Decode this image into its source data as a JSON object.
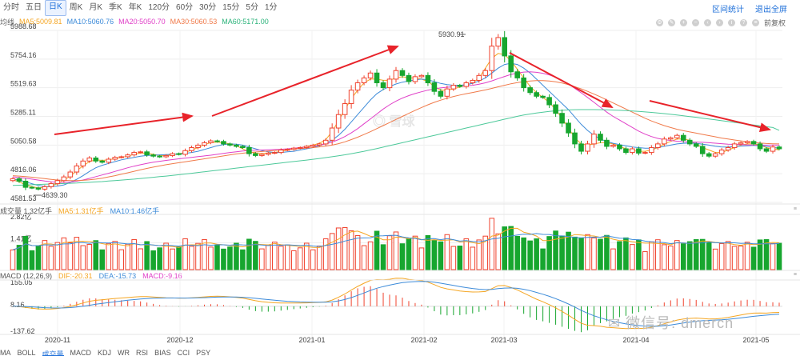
{
  "tabs": [
    {
      "label": "分时"
    },
    {
      "label": "五日"
    },
    {
      "label": "日K",
      "active": true
    },
    {
      "label": "周K"
    },
    {
      "label": "月K"
    },
    {
      "label": "季K"
    },
    {
      "label": "年K"
    },
    {
      "label": "120分"
    },
    {
      "label": "60分"
    },
    {
      "label": "30分"
    },
    {
      "label": "15分"
    },
    {
      "label": "5分"
    },
    {
      "label": "1分"
    }
  ],
  "topright": {
    "interval_stats": "区间统计",
    "exit_fullscreen": "退出全屏"
  },
  "top_icons": {
    "adjust": "前复权"
  },
  "ma_legend": {
    "name": "均线",
    "ma5": "MA5:5009.81",
    "ma10": "MA10:5060.76",
    "ma20": "MA20:5050.70",
    "ma30": "MA30:5060.53",
    "ma60": "MA60:5171.00"
  },
  "vol_legend": {
    "title": "成交量 1.32亿手",
    "ma5": "MA5:1.31亿手",
    "ma10": "MA10:1.46亿手"
  },
  "macd_legend": {
    "title": "MACD (12,26,9)",
    "dif": "DIF:-20.31",
    "dea": "DEA:-15.73",
    "macd": "MACD:-9.16"
  },
  "price_axis": [
    "5988.68",
    "5754.16",
    "5519.63",
    "5285.11",
    "5050.58",
    "4816.06",
    "4581.53"
  ],
  "vol_axis": [
    "2.82亿",
    "1.41亿"
  ],
  "macd_axis": [
    "155.05",
    "8.16",
    "-137.62"
  ],
  "annotations": {
    "high": "5930.91",
    "low": "4639.30"
  },
  "x_labels": [
    "2020-11",
    "2020-12",
    "2021-01",
    "2021-02",
    "2021-03",
    "2021-04",
    "2021-05"
  ],
  "bottom_tabs": [
    {
      "label": "MA"
    },
    {
      "label": "BOLL"
    },
    {
      "label": "成交量",
      "active": true
    },
    {
      "label": "MACD"
    },
    {
      "label": "KDJ"
    },
    {
      "label": "WR"
    },
    {
      "label": "RSI"
    },
    {
      "label": "BIAS"
    },
    {
      "label": "CCI"
    },
    {
      "label": "PSY"
    }
  ],
  "watermark": "微信号: dmercn",
  "logo_text": "雪球",
  "colors": {
    "up": "#f0432e",
    "down": "#17a62f",
    "ma5": "#f5a623",
    "ma10": "#3d8bd9",
    "ma20": "#e040c8",
    "ma30": "#f07a4a",
    "ma60": "#4dc99a",
    "arrow": "#e8232a"
  },
  "chart_data": {
    "type": "candlestick",
    "x_ticks": [
      "2020-11",
      "2020-12",
      "2021-01",
      "2021-02",
      "2021-03",
      "2021-04",
      "2021-05"
    ],
    "price_range": [
      4581.53,
      5988.68
    ],
    "price": {
      "open": [
        4760,
        4775,
        4755,
        4705,
        4700,
        4690,
        4710,
        4735,
        4760,
        4790,
        4830,
        4880,
        4920,
        4945,
        4920,
        4910,
        4935,
        4950,
        4955,
        4970,
        4990,
        4995,
        4970,
        4960,
        4955,
        4965,
        4980,
        4975,
        5005,
        5030,
        5050,
        5070,
        5085,
        5080,
        5060,
        5050,
        5040,
        5030,
        4980,
        4965,
        4975,
        4985,
        4990,
        5010,
        5015,
        5025,
        5030,
        5040,
        5050,
        5060,
        5090,
        5190,
        5300,
        5390,
        5500,
        5560,
        5600,
        5640,
        5560,
        5520,
        5590,
        5660,
        5620,
        5570,
        5610,
        5620,
        5560,
        5490,
        5450,
        5510,
        5540,
        5530,
        5560,
        5580,
        5620,
        5660,
        5860,
        5930,
        5780,
        5650,
        5600,
        5520,
        5480,
        5450,
        5440,
        5380,
        5310,
        5230,
        5150,
        5060,
        5000,
        5060,
        5140,
        5090,
        5040,
        5050,
        5020,
        4990,
        5020,
        4985,
        4990,
        5030,
        5060,
        5100,
        5110,
        5130,
        5090,
        5060,
        5040,
        4980,
        4960,
        4980,
        5010,
        5030,
        5060,
        5070,
        5080,
        5060,
        5020,
        5000,
        5035
      ],
      "close": [
        4775,
        4755,
        4705,
        4700,
        4690,
        4710,
        4735,
        4760,
        4790,
        4830,
        4880,
        4920,
        4945,
        4920,
        4910,
        4935,
        4950,
        4955,
        4970,
        4990,
        4995,
        4970,
        4960,
        4955,
        4965,
        4980,
        4975,
        5005,
        5030,
        5050,
        5070,
        5085,
        5080,
        5060,
        5050,
        5040,
        5030,
        4980,
        4965,
        4975,
        4985,
        4990,
        5010,
        5015,
        5025,
        5030,
        5040,
        5050,
        5060,
        5090,
        5190,
        5300,
        5390,
        5500,
        5560,
        5600,
        5640,
        5560,
        5520,
        5590,
        5660,
        5620,
        5570,
        5610,
        5620,
        5560,
        5490,
        5450,
        5510,
        5540,
        5530,
        5560,
        5580,
        5620,
        5660,
        5860,
        5930,
        5780,
        5650,
        5600,
        5520,
        5480,
        5450,
        5440,
        5380,
        5310,
        5230,
        5150,
        5060,
        5000,
        5060,
        5140,
        5090,
        5040,
        5050,
        5020,
        4990,
        5020,
        4985,
        4990,
        5030,
        5060,
        5100,
        5110,
        5130,
        5090,
        5060,
        5040,
        4980,
        4960,
        4980,
        5010,
        5030,
        5060,
        5070,
        5080,
        5060,
        5020,
        5000,
        5035,
        5020
      ]
    },
    "ma_lines": [
      {
        "name": "MA5",
        "values": [
          4765,
          4750,
          4725,
          4710,
          4700,
          4705,
          4715,
          4735,
          4765,
          4795,
          4840,
          4880,
          4915,
          4930,
          4925,
          4930,
          4940,
          4950,
          4960,
          4975,
          4985,
          4985,
          4975,
          4965,
          4965,
          4970,
          4980,
          4990,
          5010,
          5030,
          5055,
          5070,
          5075,
          5070,
          5060,
          5045,
          5020,
          4995,
          4985,
          4980,
          4985,
          4990,
          5000,
          5010,
          5020,
          5030,
          5040,
          5050,
          5065,
          5095,
          5160,
          5250,
          5340,
          5430,
          5500,
          5560,
          5590,
          5590,
          5580,
          5580,
          5600,
          5610,
          5600,
          5600,
          5590,
          5570,
          5530,
          5500,
          5500,
          5510,
          5525,
          5540,
          5560,
          5600,
          5680,
          5760,
          5800,
          5790,
          5740,
          5670,
          5600,
          5530,
          5480,
          5440,
          5400,
          5340,
          5270,
          5190,
          5110,
          5060,
          5050,
          5060,
          5070,
          5070,
          5060,
          5040,
          5020,
          5005,
          5000,
          5000,
          5010,
          5030,
          5060,
          5080,
          5100,
          5100,
          5090,
          5060,
          5030,
          5010,
          4990,
          4990,
          5010,
          5030,
          5050,
          5060,
          5060,
          5050,
          5030,
          5020,
          5010
        ]
      },
      {
        "name": "MA10",
        "values": [
          4770,
          4765,
          4750,
          4735,
          4720,
          4712,
          4710,
          4715,
          4725,
          4745,
          4770,
          4800,
          4835,
          4865,
          4885,
          4900,
          4915,
          4930,
          4940,
          4950,
          4960,
          4965,
          4968,
          4970,
          4972,
          4975,
          4978,
          4982,
          4990,
          5000,
          5015,
          5030,
          5045,
          5055,
          5060,
          5058,
          5050,
          5035,
          5020,
          5005,
          4995,
          4990,
          4990,
          4995,
          5000,
          5010,
          5020,
          5030,
          5045,
          5065,
          5090,
          5130,
          5180,
          5240,
          5300,
          5360,
          5420,
          5470,
          5505,
          5530,
          5550,
          5565,
          5575,
          5585,
          5590,
          5585,
          5570,
          5555,
          5545,
          5540,
          5540,
          5545,
          5555,
          5575,
          5600,
          5640,
          5680,
          5710,
          5720,
          5710,
          5680,
          5640,
          5590,
          5540,
          5490,
          5440,
          5390,
          5340,
          5280,
          5220,
          5170,
          5130,
          5100,
          5080,
          5065,
          5055,
          5045,
          5035,
          5030,
          5025,
          5025,
          5030,
          5040,
          5050,
          5060,
          5065,
          5068,
          5065,
          5058,
          5050,
          5040,
          5035,
          5035,
          5038,
          5042,
          5045,
          5048,
          5046,
          5040,
          5032,
          5025
        ]
      },
      {
        "name": "MA20",
        "values": [
          4790,
          4786,
          4780,
          4772,
          4764,
          4756,
          4750,
          4746,
          4745,
          4748,
          4755,
          4765,
          4778,
          4792,
          4806,
          4820,
          4835,
          4850,
          4865,
          4878,
          4890,
          4900,
          4910,
          4918,
          4925,
          4932,
          4938,
          4944,
          4950,
          4956,
          4962,
          4968,
          4975,
          4982,
          4990,
          4996,
          5002,
          5006,
          5008,
          5010,
          5012,
          5014,
          5016,
          5020,
          5025,
          5030,
          5036,
          5042,
          5050,
          5060,
          5075,
          5095,
          5120,
          5150,
          5185,
          5225,
          5265,
          5305,
          5345,
          5380,
          5410,
          5435,
          5455,
          5472,
          5487,
          5500,
          5510,
          5518,
          5524,
          5528,
          5532,
          5536,
          5540,
          5548,
          5560,
          5576,
          5594,
          5612,
          5628,
          5640,
          5648,
          5650,
          5646,
          5638,
          5625,
          5605,
          5580,
          5550,
          5515,
          5478,
          5440,
          5400,
          5360,
          5320,
          5285,
          5255,
          5225,
          5195,
          5165,
          5140,
          5120,
          5105,
          5095,
          5088,
          5082,
          5078,
          5076,
          5075,
          5073,
          5070,
          5066,
          5062,
          5058,
          5056,
          5054,
          5052,
          5050,
          5050,
          5050,
          5050,
          5050
        ]
      },
      {
        "name": "MA30",
        "values": [
          4800,
          4797,
          4793,
          4788,
          4782,
          4776,
          4770,
          4765,
          4762,
          4760,
          4760,
          4762,
          4766,
          4772,
          4780,
          4790,
          4800,
          4812,
          4824,
          4836,
          4848,
          4860,
          4870,
          4880,
          4890,
          4898,
          4906,
          4914,
          4922,
          4930,
          4938,
          4946,
          4954,
          4962,
          4970,
          4978,
          4984,
          4990,
          4994,
          4998,
          5002,
          5006,
          5010,
          5014,
          5018,
          5022,
          5026,
          5030,
          5036,
          5042,
          5050,
          5062,
          5077,
          5095,
          5115,
          5137,
          5160,
          5185,
          5210,
          5235,
          5260,
          5285,
          5310,
          5335,
          5358,
          5380,
          5400,
          5418,
          5434,
          5448,
          5460,
          5471,
          5481,
          5491,
          5502,
          5514,
          5527,
          5540,
          5552,
          5562,
          5570,
          5575,
          5578,
          5578,
          5575,
          5568,
          5558,
          5545,
          5528,
          5510,
          5490,
          5468,
          5445,
          5420,
          5395,
          5370,
          5345,
          5320,
          5295,
          5270,
          5248,
          5228,
          5210,
          5194,
          5180,
          5168,
          5158,
          5148,
          5138,
          5128,
          5118,
          5108,
          5100,
          5092,
          5085,
          5078,
          5072,
          5067,
          5063,
          5061,
          5060
        ]
      },
      {
        "name": "MA60",
        "values": [
          4720,
          4722,
          4724,
          4726,
          4728,
          4730,
          4732,
          4734,
          4736,
          4738,
          4740,
          4743,
          4746,
          4749,
          4752,
          4756,
          4760,
          4764,
          4768,
          4772,
          4777,
          4782,
          4787,
          4792,
          4797,
          4802,
          4808,
          4814,
          4820,
          4826,
          4832,
          4838,
          4844,
          4850,
          4856,
          4862,
          4868,
          4874,
          4880,
          4886,
          4892,
          4898,
          4904,
          4910,
          4916,
          4922,
          4928,
          4934,
          4941,
          4948,
          4955,
          4963,
          4971,
          4980,
          4990,
          5000,
          5011,
          5022,
          5034,
          5046,
          5058,
          5070,
          5082,
          5094,
          5106,
          5118,
          5130,
          5142,
          5154,
          5166,
          5178,
          5190,
          5202,
          5214,
          5226,
          5238,
          5250,
          5262,
          5274,
          5286,
          5296,
          5305,
          5313,
          5320,
          5326,
          5331,
          5335,
          5338,
          5340,
          5341,
          5341,
          5341,
          5340,
          5339,
          5337,
          5335,
          5332,
          5329,
          5326,
          5322,
          5318,
          5313,
          5308,
          5302,
          5296,
          5290,
          5284,
          5278,
          5271,
          5264,
          5257,
          5250,
          5243,
          5236,
          5229,
          5222,
          5215,
          5208,
          5201,
          5194,
          5171
        ]
      }
    ],
    "volume_range": [
      0,
      2.82
    ],
    "volume_unit": "亿手",
    "macd_range": [
      -137.62,
      155.05
    ]
  }
}
